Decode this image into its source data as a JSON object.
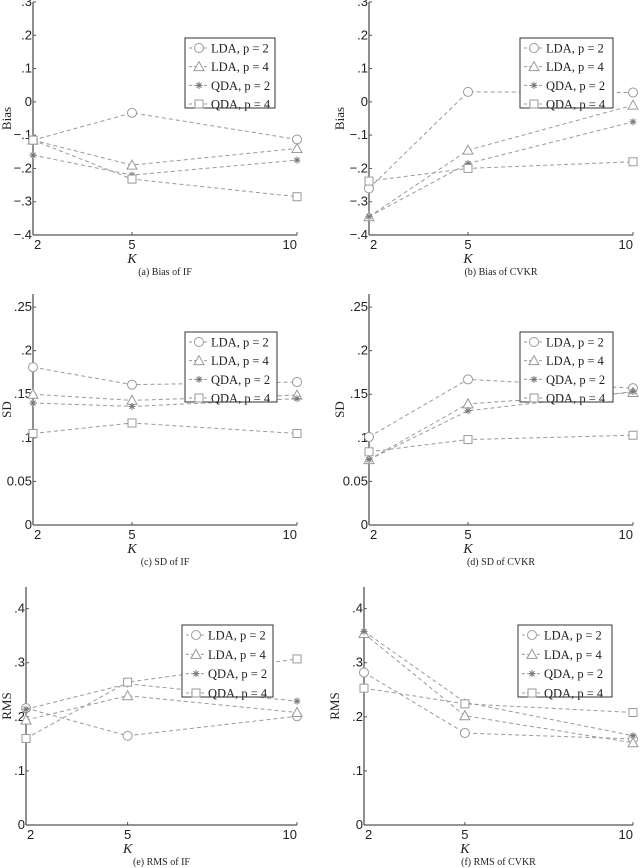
{
  "chart_data": [
    {
      "type": "line",
      "caption": "(a) Bias of IF",
      "xlabel": "K",
      "ylabel": "Bias",
      "x": [
        2,
        5,
        10
      ],
      "xticks": [
        "2",
        "5",
        "10"
      ],
      "ylim": [
        -0.4,
        0.3
      ],
      "yticks": [
        0.3,
        0.2,
        0.1,
        0,
        -0.1,
        -0.2,
        -0.3,
        -0.4
      ],
      "ytick_labels": [
        ".3",
        ".2",
        ".1",
        "0",
        "−.1",
        "−.2",
        "−.3",
        "−.4"
      ],
      "grid": false,
      "legend": "upper-right",
      "series": [
        {
          "name": "LDA, p = 2",
          "marker": "circle",
          "values": [
            -0.115,
            -0.033,
            -0.113
          ]
        },
        {
          "name": "LDA, p = 4",
          "marker": "triangle",
          "values": [
            -0.115,
            -0.19,
            -0.14
          ]
        },
        {
          "name": "QDA, p = 2",
          "marker": "asterisk",
          "values": [
            -0.16,
            -0.22,
            -0.175
          ]
        },
        {
          "name": "QDA, p = 4",
          "marker": "square",
          "values": [
            -0.115,
            -0.232,
            -0.285
          ]
        }
      ]
    },
    {
      "type": "line",
      "caption": "(b) Bias of CVKR",
      "xlabel": "K",
      "ylabel": "Bias",
      "x": [
        2,
        5,
        10
      ],
      "xticks": [
        "2",
        "5",
        "10"
      ],
      "ylim": [
        -0.4,
        0.3
      ],
      "yticks": [
        0.3,
        0.2,
        0.1,
        0,
        -0.1,
        -0.2,
        -0.3,
        -0.4
      ],
      "ytick_labels": [
        ".3",
        ".2",
        ".1",
        "0",
        "−.1",
        "−.2",
        "−.3",
        "−.4"
      ],
      "grid": false,
      "legend": "upper-right",
      "series": [
        {
          "name": "LDA, p = 2",
          "marker": "circle",
          "values": [
            -0.26,
            0.03,
            0.028
          ]
        },
        {
          "name": "LDA, p = 4",
          "marker": "triangle",
          "values": [
            -0.345,
            -0.145,
            -0.01
          ]
        },
        {
          "name": "QDA, p = 2",
          "marker": "asterisk",
          "values": [
            -0.345,
            -0.185,
            -0.06
          ]
        },
        {
          "name": "QDA, p = 4",
          "marker": "square",
          "values": [
            -0.238,
            -0.2,
            -0.18
          ]
        }
      ]
    },
    {
      "type": "line",
      "caption": "(c) SD of IF",
      "xlabel": "K",
      "ylabel": "SD",
      "x": [
        2,
        5,
        10
      ],
      "xticks": [
        "2",
        "5",
        "10"
      ],
      "ylim": [
        0,
        0.265
      ],
      "yticks": [
        0.25,
        0.2,
        0.15,
        0.1,
        0.05,
        0
      ],
      "ytick_labels": [
        ".25",
        ".2",
        ".15",
        ".1",
        "0.05",
        "0"
      ],
      "grid": false,
      "legend": "upper-right",
      "series": [
        {
          "name": "LDA, p = 2",
          "marker": "circle",
          "values": [
            0.181,
            0.161,
            0.164
          ]
        },
        {
          "name": "LDA, p = 4",
          "marker": "triangle",
          "values": [
            0.15,
            0.143,
            0.149
          ]
        },
        {
          "name": "QDA, p = 2",
          "marker": "asterisk",
          "values": [
            0.14,
            0.136,
            0.145
          ]
        },
        {
          "name": "QDA, p = 4",
          "marker": "square",
          "values": [
            0.105,
            0.117,
            0.105
          ]
        }
      ]
    },
    {
      "type": "line",
      "caption": "(d) SD of CVKR",
      "xlabel": "K",
      "ylabel": "SD",
      "x": [
        2,
        5,
        10
      ],
      "xticks": [
        "2",
        "5",
        "10"
      ],
      "ylim": [
        0,
        0.265
      ],
      "yticks": [
        0.25,
        0.2,
        0.15,
        0.1,
        0.05,
        0
      ],
      "ytick_labels": [
        ".25",
        ".2",
        ".15",
        ".1",
        "0.05",
        "0"
      ],
      "grid": false,
      "legend": "upper-right",
      "series": [
        {
          "name": "LDA, p = 2",
          "marker": "circle",
          "values": [
            0.101,
            0.167,
            0.157
          ]
        },
        {
          "name": "LDA, p = 4",
          "marker": "triangle",
          "values": [
            0.075,
            0.139,
            0.152
          ]
        },
        {
          "name": "QDA, p = 2",
          "marker": "asterisk",
          "values": [
            0.075,
            0.131,
            0.153
          ]
        },
        {
          "name": "QDA, p = 4",
          "marker": "square",
          "values": [
            0.084,
            0.098,
            0.103
          ]
        }
      ]
    },
    {
      "type": "line",
      "caption": "(e) RMS of IF",
      "xlabel": "K",
      "ylabel": "RMS",
      "x": [
        2,
        5,
        10
      ],
      "xticks": [
        "2",
        "5",
        "10"
      ],
      "ylim": [
        0,
        0.44
      ],
      "yticks": [
        0.4,
        0.3,
        0.2,
        0.1,
        0
      ],
      "ytick_labels": [
        ".4",
        ".3",
        ".2",
        ".1",
        "0"
      ],
      "grid": false,
      "legend": "upper-right",
      "series": [
        {
          "name": "LDA, p = 2",
          "marker": "circle",
          "values": [
            0.216,
            0.165,
            0.201
          ]
        },
        {
          "name": "LDA, p = 4",
          "marker": "triangle",
          "values": [
            0.194,
            0.239,
            0.208
          ]
        },
        {
          "name": "QDA, p = 2",
          "marker": "asterisk",
          "values": [
            0.214,
            0.261,
            0.229
          ]
        },
        {
          "name": "QDA, p = 4",
          "marker": "square",
          "values": [
            0.16,
            0.264,
            0.307
          ]
        }
      ]
    },
    {
      "type": "line",
      "caption": "(f) RMS of CVKR",
      "xlabel": "K",
      "ylabel": "RMS",
      "x": [
        2,
        5,
        10
      ],
      "xticks": [
        "2",
        "5",
        "10"
      ],
      "ylim": [
        0,
        0.44
      ],
      "yticks": [
        0.4,
        0.3,
        0.2,
        0.1,
        0
      ],
      "ytick_labels": [
        ".4",
        ".3",
        ".2",
        ".1",
        "0"
      ],
      "grid": false,
      "legend": "upper-right",
      "series": [
        {
          "name": "LDA, p = 2",
          "marker": "circle",
          "values": [
            0.282,
            0.17,
            0.159
          ]
        },
        {
          "name": "LDA, p = 4",
          "marker": "triangle",
          "values": [
            0.354,
            0.202,
            0.152
          ]
        },
        {
          "name": "QDA, p = 2",
          "marker": "asterisk",
          "values": [
            0.358,
            0.227,
            0.165
          ]
        },
        {
          "name": "QDA, p = 4",
          "marker": "square",
          "values": [
            0.253,
            0.224,
            0.208
          ]
        }
      ]
    }
  ],
  "colors": {
    "series": "#9a9a9a",
    "axis": "#555555",
    "text": "#222222"
  }
}
